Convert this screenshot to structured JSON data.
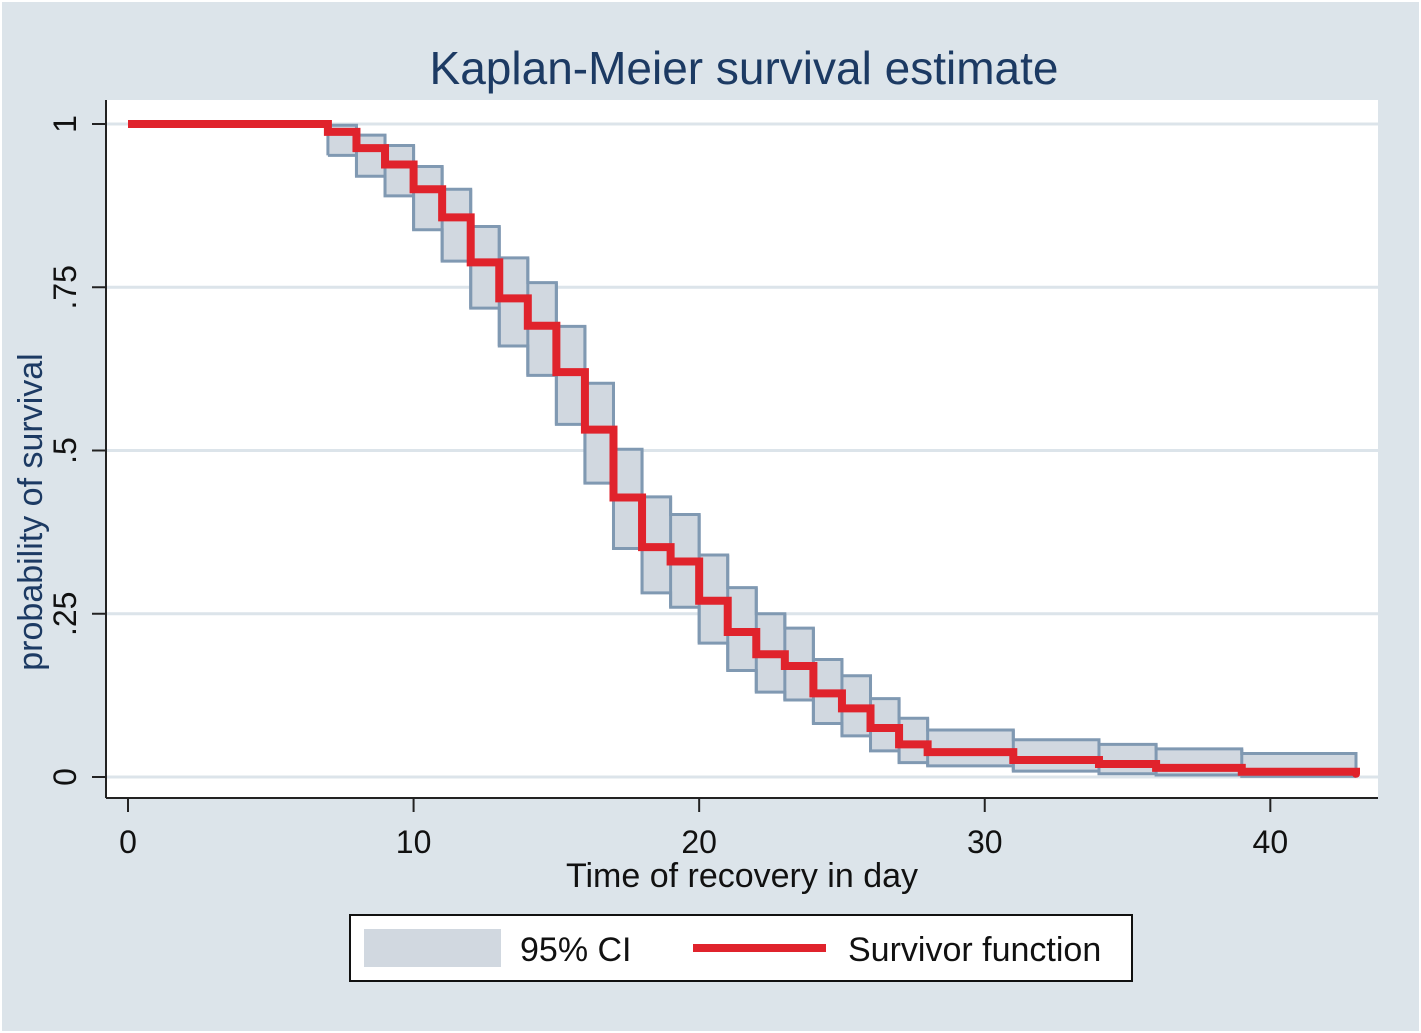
{
  "chart_data": {
    "type": "line",
    "subtype": "step",
    "title": "Kaplan-Meier survival estimate",
    "xlabel": "Time of recovery in day",
    "ylabel": "probability of survival",
    "xlim": [
      0,
      43
    ],
    "ylim": [
      0,
      1
    ],
    "x_ticks": [
      0,
      10,
      20,
      30,
      40
    ],
    "x_tick_labels": [
      "0",
      "10",
      "20",
      "30",
      "40"
    ],
    "y_ticks": [
      0,
      0.25,
      0.5,
      0.75,
      1
    ],
    "y_tick_labels": [
      "0",
      ".25",
      ".5",
      ".75",
      "1"
    ],
    "grid": true,
    "legend_placement": "bottom",
    "colors": {
      "outer_background": "#dce4ea",
      "plot_background": "#ffffff",
      "grid": "#dce4ea",
      "axis": "#222222",
      "title": "#1c3a63",
      "survivor": "#e0232c",
      "ci_fill": "#d1d8e0",
      "ci_edge": "#8099b2"
    },
    "series": [
      {
        "name": "Survivor function",
        "step": "post",
        "x": [
          0,
          7,
          8,
          9,
          10,
          11,
          12,
          13,
          14,
          15,
          16,
          17,
          18,
          19,
          20,
          21,
          22,
          23,
          24,
          25,
          26,
          27,
          28,
          31,
          34,
          36,
          39,
          43
        ],
        "values": [
          1.0,
          0.988,
          0.963,
          0.938,
          0.9,
          0.857,
          0.788,
          0.733,
          0.691,
          0.62,
          0.532,
          0.428,
          0.352,
          0.33,
          0.27,
          0.222,
          0.188,
          0.17,
          0.128,
          0.105,
          0.075,
          0.05,
          0.038,
          0.026,
          0.02,
          0.014,
          0.008,
          0.005
        ]
      },
      {
        "name": "95% CI",
        "step": "post",
        "x": [
          7,
          8,
          9,
          10,
          11,
          12,
          13,
          14,
          15,
          16,
          17,
          18,
          19,
          20,
          21,
          22,
          23,
          24,
          25,
          26,
          27,
          28,
          31,
          34,
          36,
          39,
          43
        ],
        "lower": [
          0.952,
          0.92,
          0.89,
          0.838,
          0.79,
          0.718,
          0.66,
          0.615,
          0.54,
          0.45,
          0.35,
          0.282,
          0.26,
          0.205,
          0.163,
          0.13,
          0.118,
          0.082,
          0.063,
          0.04,
          0.022,
          0.017,
          0.009,
          0.005,
          0.003,
          0.001,
          0.001
        ],
        "upper": [
          0.998,
          0.983,
          0.967,
          0.935,
          0.9,
          0.843,
          0.795,
          0.757,
          0.69,
          0.603,
          0.502,
          0.429,
          0.402,
          0.34,
          0.29,
          0.25,
          0.228,
          0.18,
          0.155,
          0.12,
          0.09,
          0.072,
          0.057,
          0.05,
          0.043,
          0.036,
          0.03
        ]
      }
    ],
    "legend": [
      {
        "key": "ci",
        "label": "95% CI"
      },
      {
        "key": "survivor",
        "label": "Survivor function"
      }
    ]
  }
}
